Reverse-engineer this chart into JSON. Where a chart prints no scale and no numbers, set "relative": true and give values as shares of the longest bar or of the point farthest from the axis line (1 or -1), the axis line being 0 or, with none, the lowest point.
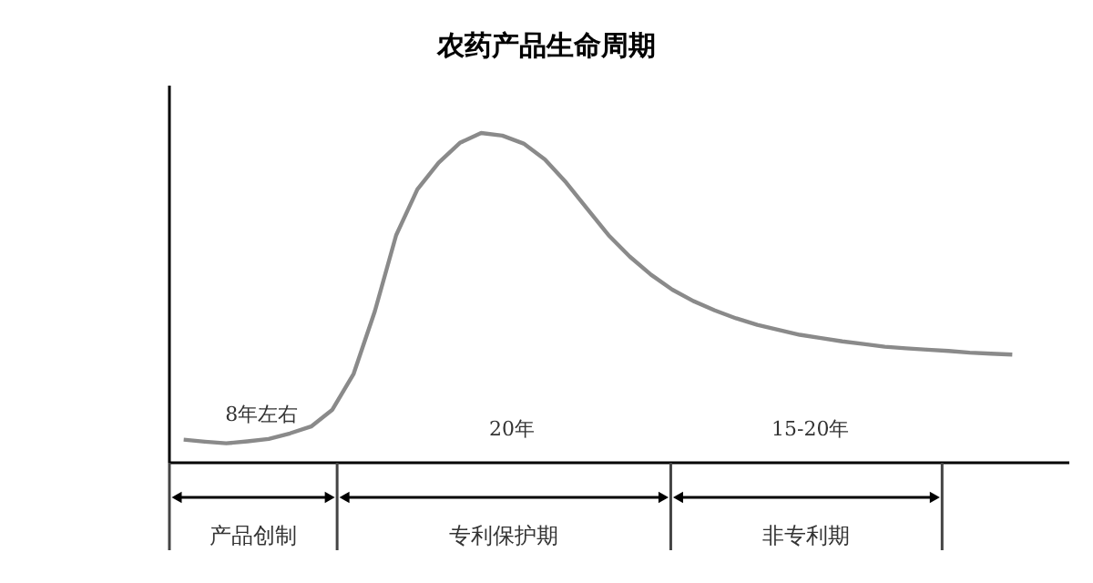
{
  "chart_data": {
    "type": "line",
    "title": "农药产品生命周期",
    "relative": true,
    "grid": false,
    "categories": [
      null,
      null,
      null,
      null,
      null,
      null,
      null,
      null,
      null,
      null,
      null,
      null,
      null,
      null,
      null,
      null,
      null,
      null,
      null,
      null,
      null,
      null,
      null,
      null,
      null,
      null,
      null,
      null,
      null,
      null,
      null,
      null,
      null,
      null,
      null,
      null,
      null,
      null,
      null,
      null
    ],
    "series": [
      {
        "color": "#8a8a8a",
        "values": [
          0.07,
          0.064,
          0.059,
          0.065,
          0.072,
          0.089,
          0.11,
          0.161,
          0.27,
          0.46,
          0.69,
          0.829,
          0.91,
          0.97,
          1,
          0.992,
          0.968,
          0.92,
          0.85,
          0.77,
          0.69,
          0.625,
          0.57,
          0.525,
          0.49,
          0.462,
          0.438,
          0.418,
          0.403,
          0.388,
          0.378,
          0.368,
          0.36,
          0.352,
          0.347,
          0.343,
          0.339,
          0.334,
          0.331,
          0.328
        ]
      }
    ],
    "annotations": [
      "8年左右",
      "20年",
      "15-20年",
      "产品创制",
      "专利保护期",
      "非专利期"
    ]
  }
}
